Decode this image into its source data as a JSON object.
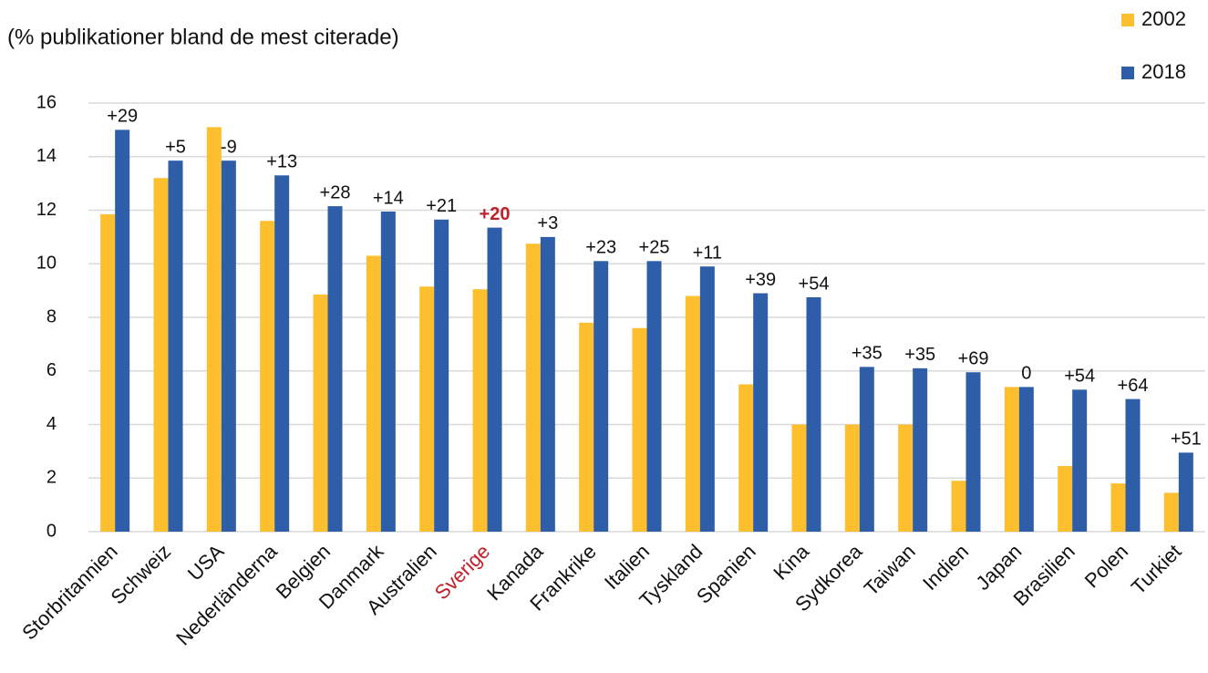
{
  "chart_data": {
    "type": "bar",
    "title": "(% publikationer bland de mest citerade)",
    "categories": [
      "Storbritannien",
      "Schweiz",
      "USA",
      "Nederländerna",
      "Belgien",
      "Danmark",
      "Australien",
      "Sverige",
      "Kanada",
      "Frankrike",
      "Italien",
      "Tyskland",
      "Spanien",
      "Kina",
      "Sydkorea",
      "Taiwan",
      "Indien",
      "Japan",
      "Brasilien",
      "Polen",
      "Turkiet"
    ],
    "series": [
      {
        "name": "2002",
        "color": "#fdbf2d",
        "values": [
          11.85,
          13.2,
          15.1,
          11.6,
          8.85,
          10.3,
          9.15,
          9.05,
          10.75,
          7.8,
          7.6,
          8.8,
          5.5,
          4.0,
          4.0,
          4.0,
          1.9,
          5.4,
          2.45,
          1.8,
          1.45
        ]
      },
      {
        "name": "2018",
        "color": "#2f5ea8",
        "values": [
          15.0,
          13.85,
          13.85,
          13.3,
          12.15,
          11.95,
          11.65,
          11.35,
          11.0,
          10.1,
          10.1,
          9.9,
          8.9,
          8.75,
          6.15,
          6.1,
          5.95,
          5.4,
          5.3,
          4.95,
          2.95
        ]
      }
    ],
    "annotations": [
      "+29",
      "+5",
      "-9",
      "+13",
      "+28",
      "+14",
      "+21",
      "+20",
      "+3",
      "+23",
      "+25",
      "+11",
      "+39",
      "+54",
      "+35",
      "+35",
      "+69",
      "0",
      "+54",
      "+64",
      "+51"
    ],
    "highlight_index": 7,
    "highlight_color": "#c0202a",
    "ylim": [
      0,
      16
    ],
    "yticks": [
      0,
      2,
      4,
      6,
      8,
      10,
      12,
      14,
      16
    ],
    "grid": true,
    "legend": "top-right"
  }
}
